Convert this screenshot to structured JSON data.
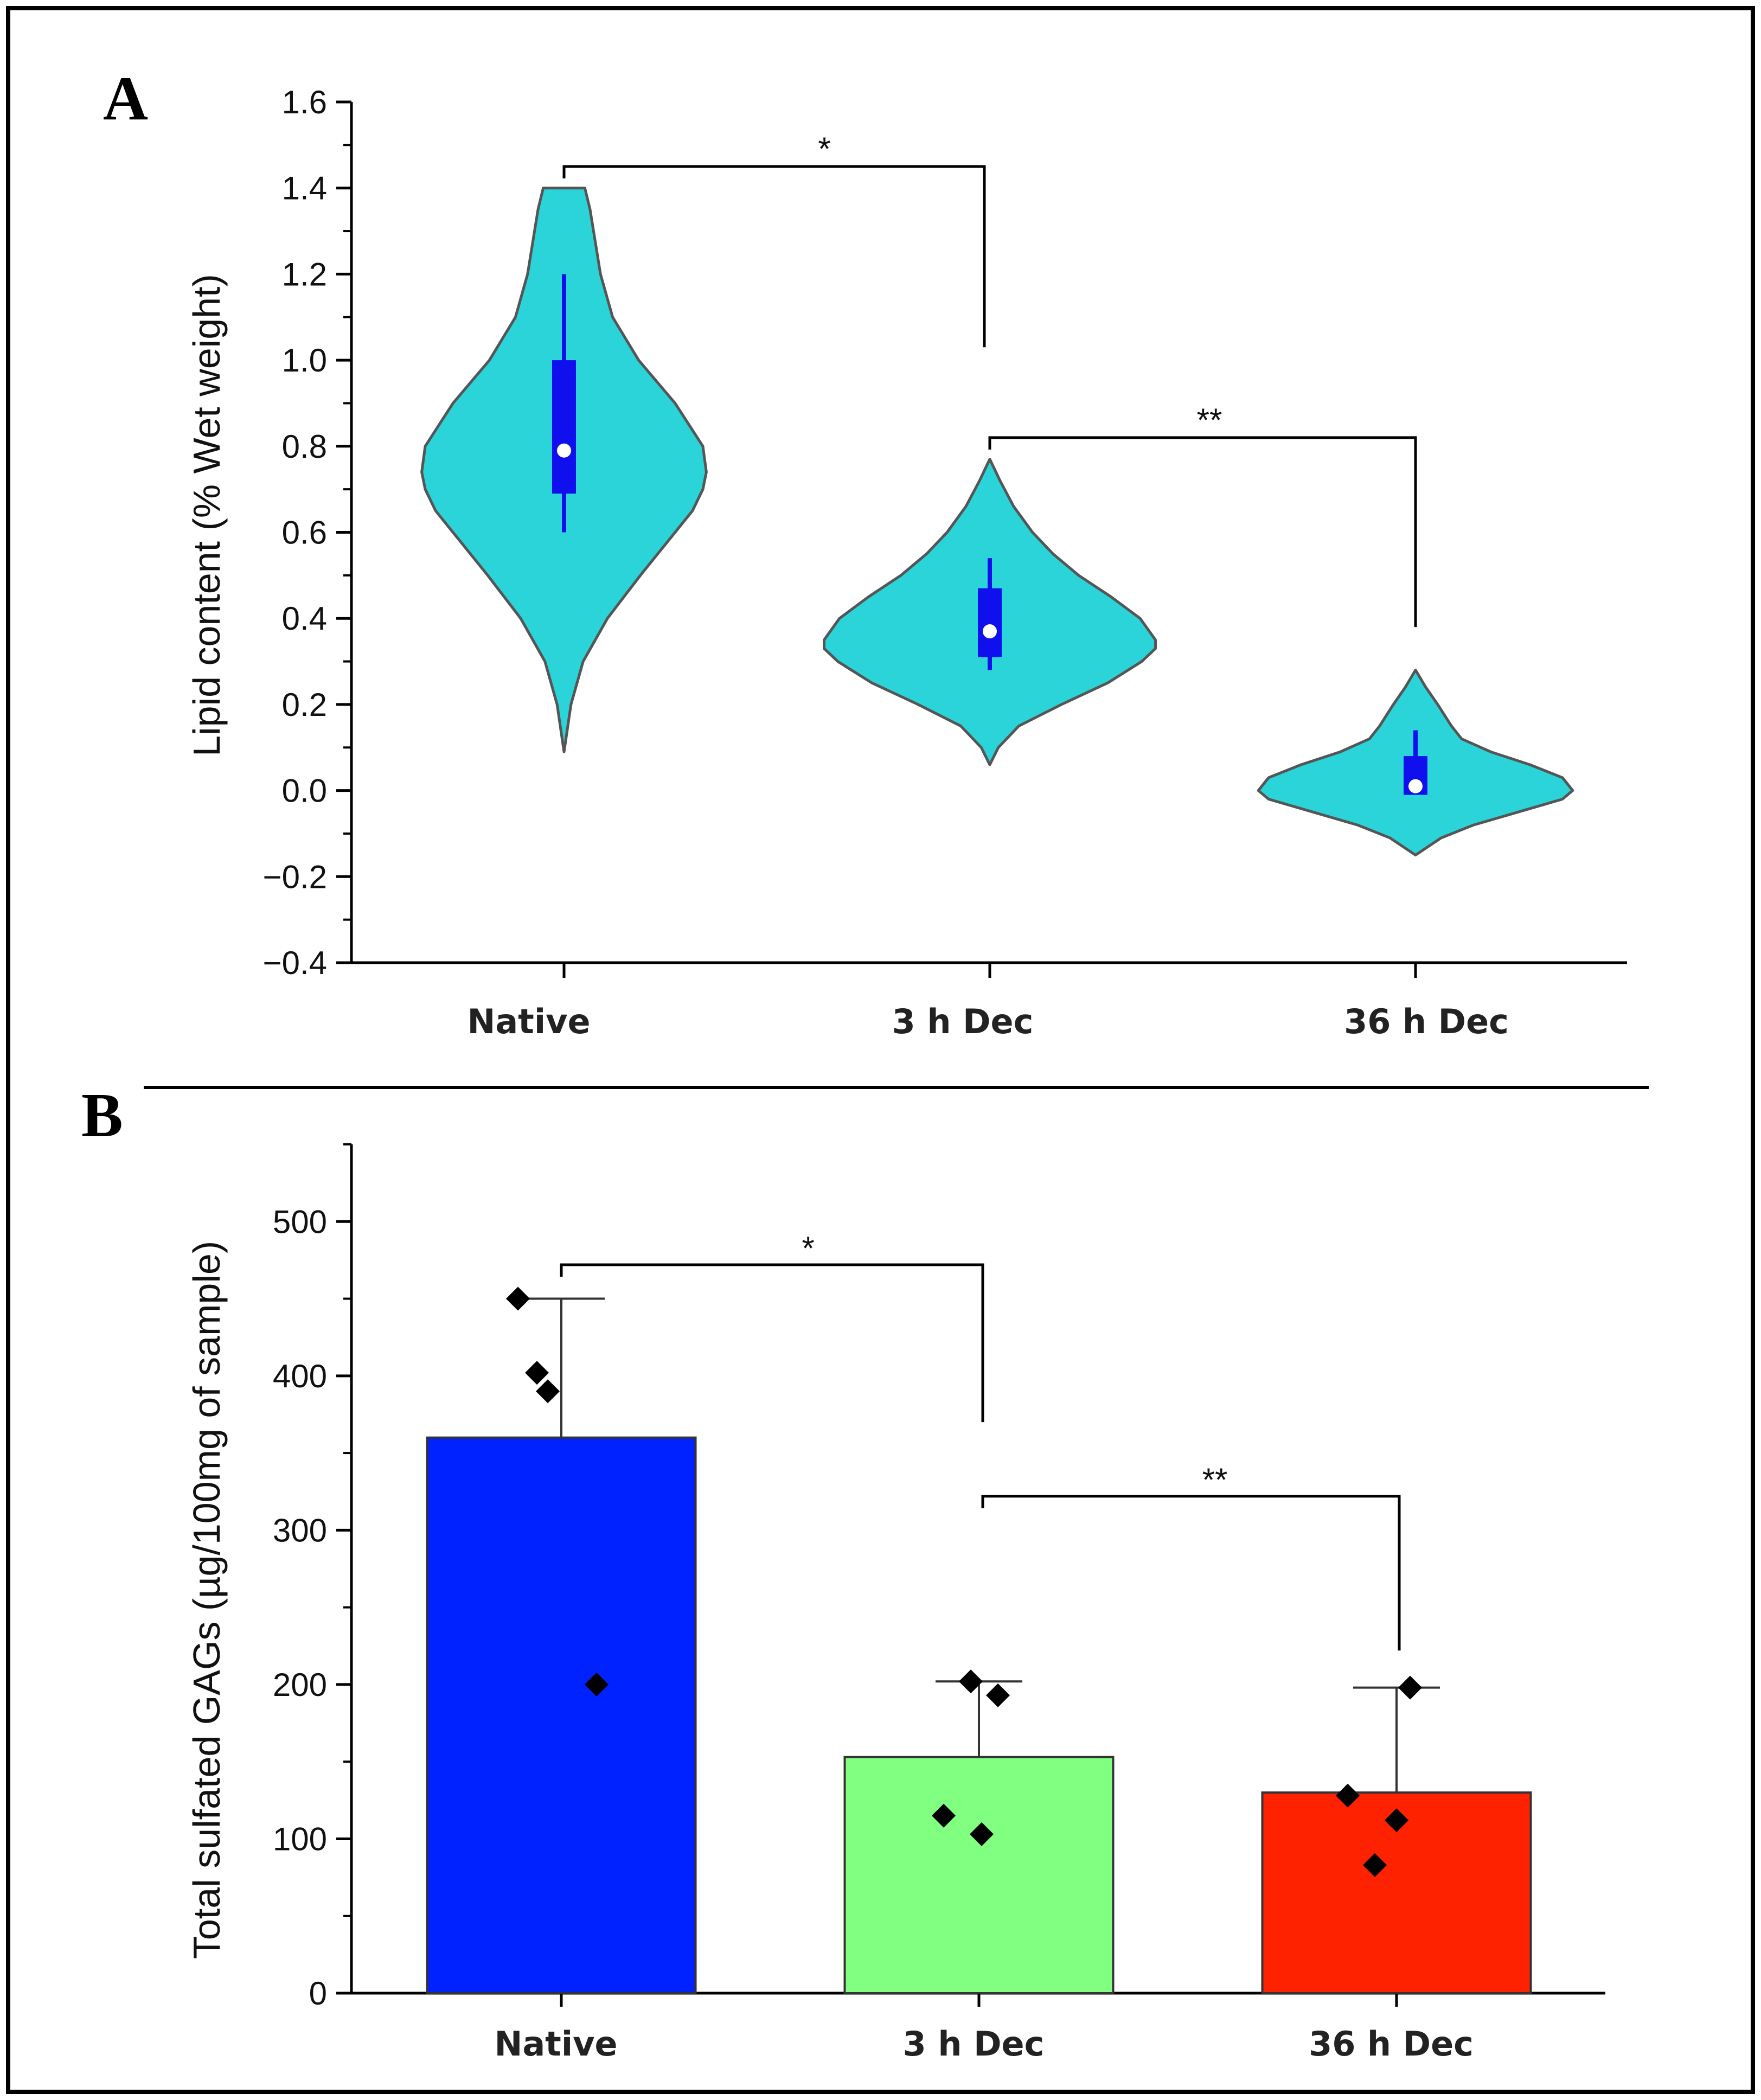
{
  "figure": {
    "panels": [
      "A",
      "B"
    ]
  },
  "chart_data": [
    {
      "panel": "A",
      "type": "violin",
      "title": "",
      "xlabel": "",
      "ylabel": "Lipid content (% Wet weight)",
      "ylim": [
        -0.4,
        1.6
      ],
      "yticks": [
        -0.4,
        -0.2,
        0.0,
        0.2,
        0.4,
        0.6,
        0.8,
        1.0,
        1.2,
        1.4,
        1.6
      ],
      "ytick_labels": [
        "−0.4",
        "−0.2",
        "0.0",
        "0.2",
        "0.4",
        "0.6",
        "0.8",
        "1.0",
        "1.2",
        "1.4",
        "1.6"
      ],
      "categories": [
        "Native",
        "3 h Dec",
        "36 h Dec"
      ],
      "violins": [
        {
          "category": "Native",
          "min": 0.09,
          "max": 1.4,
          "whisker_low": 0.6,
          "q1": 0.69,
          "median": 0.79,
          "q3": 1.0,
          "whisker_high": 1.2,
          "profile": [
            [
              1.4,
              0.12
            ],
            [
              1.35,
              0.15
            ],
            [
              1.3,
              0.17
            ],
            [
              1.2,
              0.21
            ],
            [
              1.1,
              0.28
            ],
            [
              1.0,
              0.43
            ],
            [
              0.9,
              0.64
            ],
            [
              0.8,
              0.8
            ],
            [
              0.74,
              0.82
            ],
            [
              0.7,
              0.8
            ],
            [
              0.65,
              0.74
            ],
            [
              0.6,
              0.64
            ],
            [
              0.5,
              0.44
            ],
            [
              0.4,
              0.25
            ],
            [
              0.3,
              0.11
            ],
            [
              0.2,
              0.04
            ],
            [
              0.09,
              0.0
            ]
          ]
        },
        {
          "category": "3 h Dec",
          "min": 0.06,
          "max": 0.77,
          "whisker_low": 0.28,
          "q1": 0.31,
          "median": 0.37,
          "q3": 0.47,
          "whisker_high": 0.54,
          "profile": [
            [
              0.77,
              0.0
            ],
            [
              0.72,
              0.06
            ],
            [
              0.66,
              0.14
            ],
            [
              0.6,
              0.25
            ],
            [
              0.55,
              0.37
            ],
            [
              0.5,
              0.52
            ],
            [
              0.45,
              0.71
            ],
            [
              0.4,
              0.88
            ],
            [
              0.35,
              0.97
            ],
            [
              0.33,
              0.97
            ],
            [
              0.3,
              0.89
            ],
            [
              0.25,
              0.69
            ],
            [
              0.2,
              0.42
            ],
            [
              0.15,
              0.17
            ],
            [
              0.1,
              0.05
            ],
            [
              0.06,
              0.0
            ]
          ]
        },
        {
          "category": "36 h Dec",
          "min": -0.15,
          "max": 0.28,
          "whisker_low": -0.01,
          "q1": -0.01,
          "median": 0.01,
          "q3": 0.08,
          "whisker_high": 0.14,
          "profile": [
            [
              0.28,
              0.0
            ],
            [
              0.24,
              0.06
            ],
            [
              0.2,
              0.13
            ],
            [
              0.15,
              0.21
            ],
            [
              0.12,
              0.27
            ],
            [
              0.09,
              0.44
            ],
            [
              0.06,
              0.67
            ],
            [
              0.03,
              0.86
            ],
            [
              0.0,
              0.92
            ],
            [
              -0.02,
              0.86
            ],
            [
              -0.05,
              0.6
            ],
            [
              -0.08,
              0.34
            ],
            [
              -0.11,
              0.15
            ],
            [
              -0.15,
              0.0
            ]
          ]
        }
      ],
      "significance": [
        {
          "from": "Native",
          "to": "3 h Dec",
          "label": "*",
          "y": 1.45
        },
        {
          "from": "3 h Dec",
          "to": "36 h Dec",
          "label": "**",
          "y": 0.82
        }
      ],
      "colors": {
        "violin_fill": "#2ad4d8",
        "violin_stroke": "#555555",
        "box": "#1010ee",
        "median_dot": "#ffffff"
      }
    },
    {
      "panel": "B",
      "type": "bar",
      "title": "",
      "xlabel": "",
      "ylabel": "Total sulfated GAGs (µg/100mg of sample)",
      "ylim": [
        0,
        550
      ],
      "yticks": [
        0,
        100,
        200,
        300,
        400,
        500
      ],
      "ytick_labels": [
        "0",
        "100",
        "200",
        "300",
        "400",
        "500"
      ],
      "categories": [
        "Native",
        "3 h Dec",
        "36 h Dec"
      ],
      "values": [
        360,
        153,
        130
      ],
      "error_upper": [
        450,
        202,
        198
      ],
      "points": [
        [
          [
            -32,
            450
          ],
          [
            -18,
            402
          ],
          [
            -10,
            390
          ],
          [
            26,
            200
          ]
        ],
        [
          [
            -6,
            202
          ],
          [
            14,
            193
          ],
          [
            -26,
            115
          ],
          [
            2,
            103
          ]
        ],
        [
          [
            -36,
            128
          ],
          [
            10,
            198
          ],
          [
            0,
            112
          ],
          [
            -16,
            83
          ]
        ]
      ],
      "significance": [
        {
          "from": "Native",
          "to": "3 h Dec",
          "label": "*",
          "y": 472
        },
        {
          "from": "3 h Dec",
          "to": "36 h Dec",
          "label": "**",
          "y": 322
        }
      ],
      "colors": {
        "bars": [
          "#0022ff",
          "#80ff80",
          "#ff2200"
        ],
        "bar_stroke": "#333333",
        "points": "#000000"
      }
    }
  ]
}
